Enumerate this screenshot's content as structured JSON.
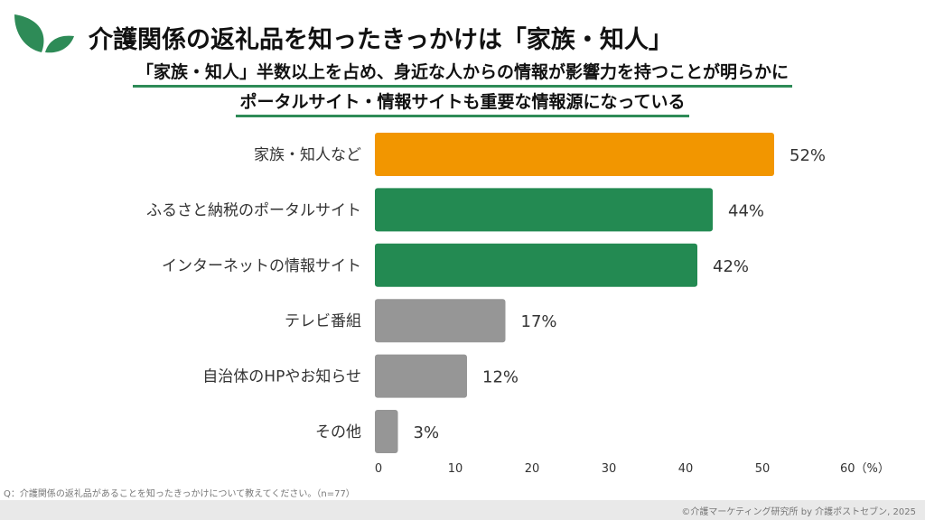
{
  "header": {
    "title": "介護関係の返礼品を知ったきっかけは「家族・知人」",
    "subtitle_line1": "「家族・知人」半数以上を占め、身近な人からの情報が影響力を持つことが明らかに",
    "subtitle_line2": "ポータルサイト・情報サイトも重要な情報源になっている"
  },
  "chart_data": {
    "type": "bar",
    "orientation": "horizontal",
    "categories": [
      "家族・知人など",
      "ふるさと納税のポータルサイト",
      "インターネットの情報サイト",
      "テレビ番組",
      "自治体のHPやお知らせ",
      "その他"
    ],
    "values": [
      52,
      44,
      42,
      17,
      12,
      3
    ],
    "value_labels": [
      "52%",
      "44%",
      "42%",
      "17%",
      "12%",
      "3%"
    ],
    "bar_colors": [
      "#F29600",
      "#238A52",
      "#238A52",
      "#969696",
      "#969696",
      "#969696"
    ],
    "xlim": [
      0,
      60
    ],
    "xticks": [
      "0",
      "10",
      "20",
      "30",
      "40",
      "50",
      "60（%）"
    ],
    "xtick_values": [
      0,
      10,
      20,
      30,
      40,
      50,
      60
    ],
    "grid": false
  },
  "note": "Q：介護関係の返礼品があることを知ったきっかけについて教えてください。（n=77）",
  "footer": "©介護マーケティング研究所 by 介護ポストセブン, 2025",
  "colors": {
    "accent": "#2e8b57"
  }
}
